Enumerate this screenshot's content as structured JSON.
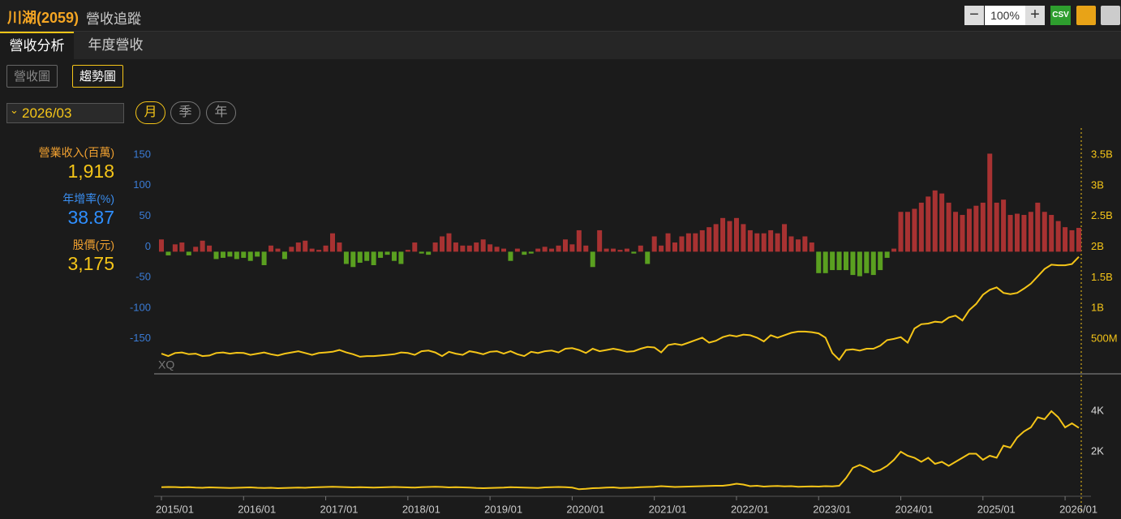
{
  "header": {
    "title": "川湖(2059)",
    "subtitle": "營收追蹤",
    "zoom": "100%",
    "csv": "CSV"
  },
  "tabs": [
    "營收分析",
    "年度營收"
  ],
  "subtabs": [
    "營收圖",
    "趨勢圖"
  ],
  "period": {
    "selected": "2026/03",
    "options": [
      "月",
      "季",
      "年"
    ]
  },
  "summary": [
    {
      "label": "營業收入(百萬)",
      "value": "1,918"
    },
    {
      "label": "年增率(%)",
      "value": "38.87"
    },
    {
      "label": "股價(元)",
      "value": "3,175"
    }
  ],
  "chart_data": [
    {
      "type": "combo",
      "watermark": "XQ",
      "grid": false,
      "ylim": [
        -198,
        199
      ],
      "yticks": [
        150,
        100,
        50,
        0,
        -50,
        -100,
        -150
      ],
      "y2lim": [
        24,
        3989
      ],
      "y2ticks": [
        {
          "value": 3500,
          "label": "3.5B"
        },
        {
          "value": 3000,
          "label": "3B"
        },
        {
          "value": 2500,
          "label": "2.5B"
        },
        {
          "value": 2000,
          "label": "2B"
        },
        {
          "value": 1500,
          "label": "1.5B"
        },
        {
          "value": 1000,
          "label": "1B"
        },
        {
          "value": 500,
          "label": "500M"
        }
      ],
      "series": [
        {
          "type": "bar",
          "color_positive": "#a83232",
          "color_negative": "#5aa020",
          "values": [
            20,
            -6,
            12,
            15,
            -6,
            8,
            18,
            10,
            -12,
            -10,
            -8,
            -12,
            -10,
            -15,
            -8,
            -22,
            10,
            5,
            -12,
            8,
            15,
            18,
            5,
            3,
            10,
            30,
            15,
            -20,
            -25,
            -18,
            -15,
            -22,
            -10,
            -5,
            -15,
            -20,
            3,
            15,
            -3,
            -5,
            15,
            25,
            30,
            15,
            10,
            10,
            15,
            20,
            12,
            8,
            5,
            -15,
            5,
            -5,
            -3,
            5,
            8,
            5,
            10,
            20,
            12,
            35,
            10,
            -25,
            35,
            5,
            5,
            3,
            5,
            -3,
            10,
            -20,
            25,
            10,
            30,
            15,
            25,
            30,
            30,
            35,
            40,
            45,
            55,
            50,
            55,
            45,
            35,
            30,
            30,
            35,
            30,
            45,
            25,
            20,
            25,
            15,
            -35,
            -35,
            -30,
            -30,
            -30,
            -38,
            -40,
            -35,
            -38,
            -30,
            -10,
            5,
            65,
            65,
            70,
            80,
            90,
            100,
            95,
            80,
            65,
            60,
            70,
            75,
            80,
            160,
            80,
            85,
            60,
            62,
            60,
            65,
            80,
            65,
            60,
            50,
            40,
            35,
            38.87
          ]
        },
        {
          "type": "line",
          "axis": "y2",
          "color": "#f5c518",
          "values": [
            340,
            300,
            350,
            360,
            330,
            340,
            300,
            310,
            350,
            360,
            340,
            355,
            350,
            320,
            340,
            360,
            330,
            310,
            340,
            360,
            380,
            350,
            320,
            350,
            360,
            370,
            400,
            360,
            330,
            290,
            300,
            300,
            310,
            320,
            330,
            360,
            350,
            320,
            380,
            390,
            360,
            300,
            370,
            340,
            320,
            380,
            360,
            330,
            370,
            380,
            340,
            380,
            330,
            300,
            370,
            350,
            380,
            390,
            360,
            420,
            430,
            400,
            350,
            420,
            380,
            400,
            420,
            400,
            370,
            380,
            420,
            450,
            440,
            360,
            480,
            500,
            480,
            520,
            560,
            600,
            520,
            550,
            610,
            640,
            620,
            650,
            640,
            600,
            540,
            640,
            600,
            640,
            680,
            700,
            700,
            690,
            670,
            600,
            350,
            240,
            400,
            410,
            390,
            420,
            420,
            470,
            560,
            580,
            610,
            520,
            750,
            820,
            830,
            860,
            850,
            930,
            960,
            880,
            1050,
            1150,
            1300,
            1380,
            1420,
            1330,
            1310,
            1330,
            1400,
            1480,
            1600,
            1720,
            1790,
            1780,
            1780,
            1800,
            1918
          ]
        }
      ]
    },
    {
      "type": "line",
      "grid": false,
      "ylim": [
        -200,
        5800
      ],
      "yticks": [
        {
          "value": 4000,
          "label": "4K"
        },
        {
          "value": 2000,
          "label": "2K"
        }
      ],
      "categories": [
        "2015/01",
        null,
        null,
        null,
        null,
        null,
        null,
        null,
        null,
        null,
        null,
        null,
        "2016/01",
        null,
        null,
        null,
        null,
        null,
        null,
        null,
        null,
        null,
        null,
        null,
        "2017/01",
        null,
        null,
        null,
        null,
        null,
        null,
        null,
        null,
        null,
        null,
        null,
        "2018/01",
        null,
        null,
        null,
        null,
        null,
        null,
        null,
        null,
        null,
        null,
        null,
        "2019/01",
        null,
        null,
        null,
        null,
        null,
        null,
        null,
        null,
        null,
        null,
        null,
        "2020/01",
        null,
        null,
        null,
        null,
        null,
        null,
        null,
        null,
        null,
        null,
        null,
        "2021/01",
        null,
        null,
        null,
        null,
        null,
        null,
        null,
        null,
        null,
        null,
        null,
        "2022/01",
        null,
        null,
        null,
        null,
        null,
        null,
        null,
        null,
        null,
        null,
        null,
        "2023/01",
        null,
        null,
        null,
        null,
        null,
        null,
        null,
        null,
        null,
        null,
        null,
        "2024/01",
        null,
        null,
        null,
        null,
        null,
        null,
        null,
        null,
        null,
        null,
        null,
        "2025/01",
        null,
        null,
        null,
        null,
        null,
        null,
        null,
        null,
        null,
        null,
        null,
        "2026/01",
        null,
        null
      ],
      "series": [
        {
          "color": "#f5c518",
          "values": [
            250,
            260,
            255,
            240,
            250,
            230,
            220,
            240,
            230,
            220,
            210,
            220,
            230,
            240,
            220,
            210,
            220,
            200,
            210,
            220,
            230,
            220,
            240,
            250,
            260,
            270,
            260,
            250,
            240,
            250,
            240,
            230,
            240,
            250,
            260,
            250,
            240,
            230,
            250,
            260,
            270,
            260,
            240,
            250,
            240,
            230,
            210,
            200,
            210,
            220,
            230,
            250,
            240,
            230,
            220,
            210,
            240,
            250,
            260,
            250,
            230,
            150,
            170,
            200,
            210,
            230,
            240,
            210,
            220,
            230,
            250,
            260,
            270,
            300,
            280,
            260,
            270,
            280,
            290,
            300,
            310,
            320,
            320,
            360,
            420,
            380,
            300,
            320,
            280,
            300,
            310,
            290,
            300,
            270,
            280,
            290,
            280,
            300,
            290,
            320,
            700,
            1200,
            1350,
            1200,
            1000,
            1100,
            1300,
            1600,
            2000,
            1800,
            1700,
            1500,
            1700,
            1400,
            1500,
            1300,
            1500,
            1700,
            1900,
            1900,
            1600,
            1800,
            1700,
            2300,
            2200,
            2700,
            3000,
            3200,
            3700,
            3600,
            4000,
            3700,
            3200,
            3400,
            3175
          ]
        }
      ]
    }
  ]
}
